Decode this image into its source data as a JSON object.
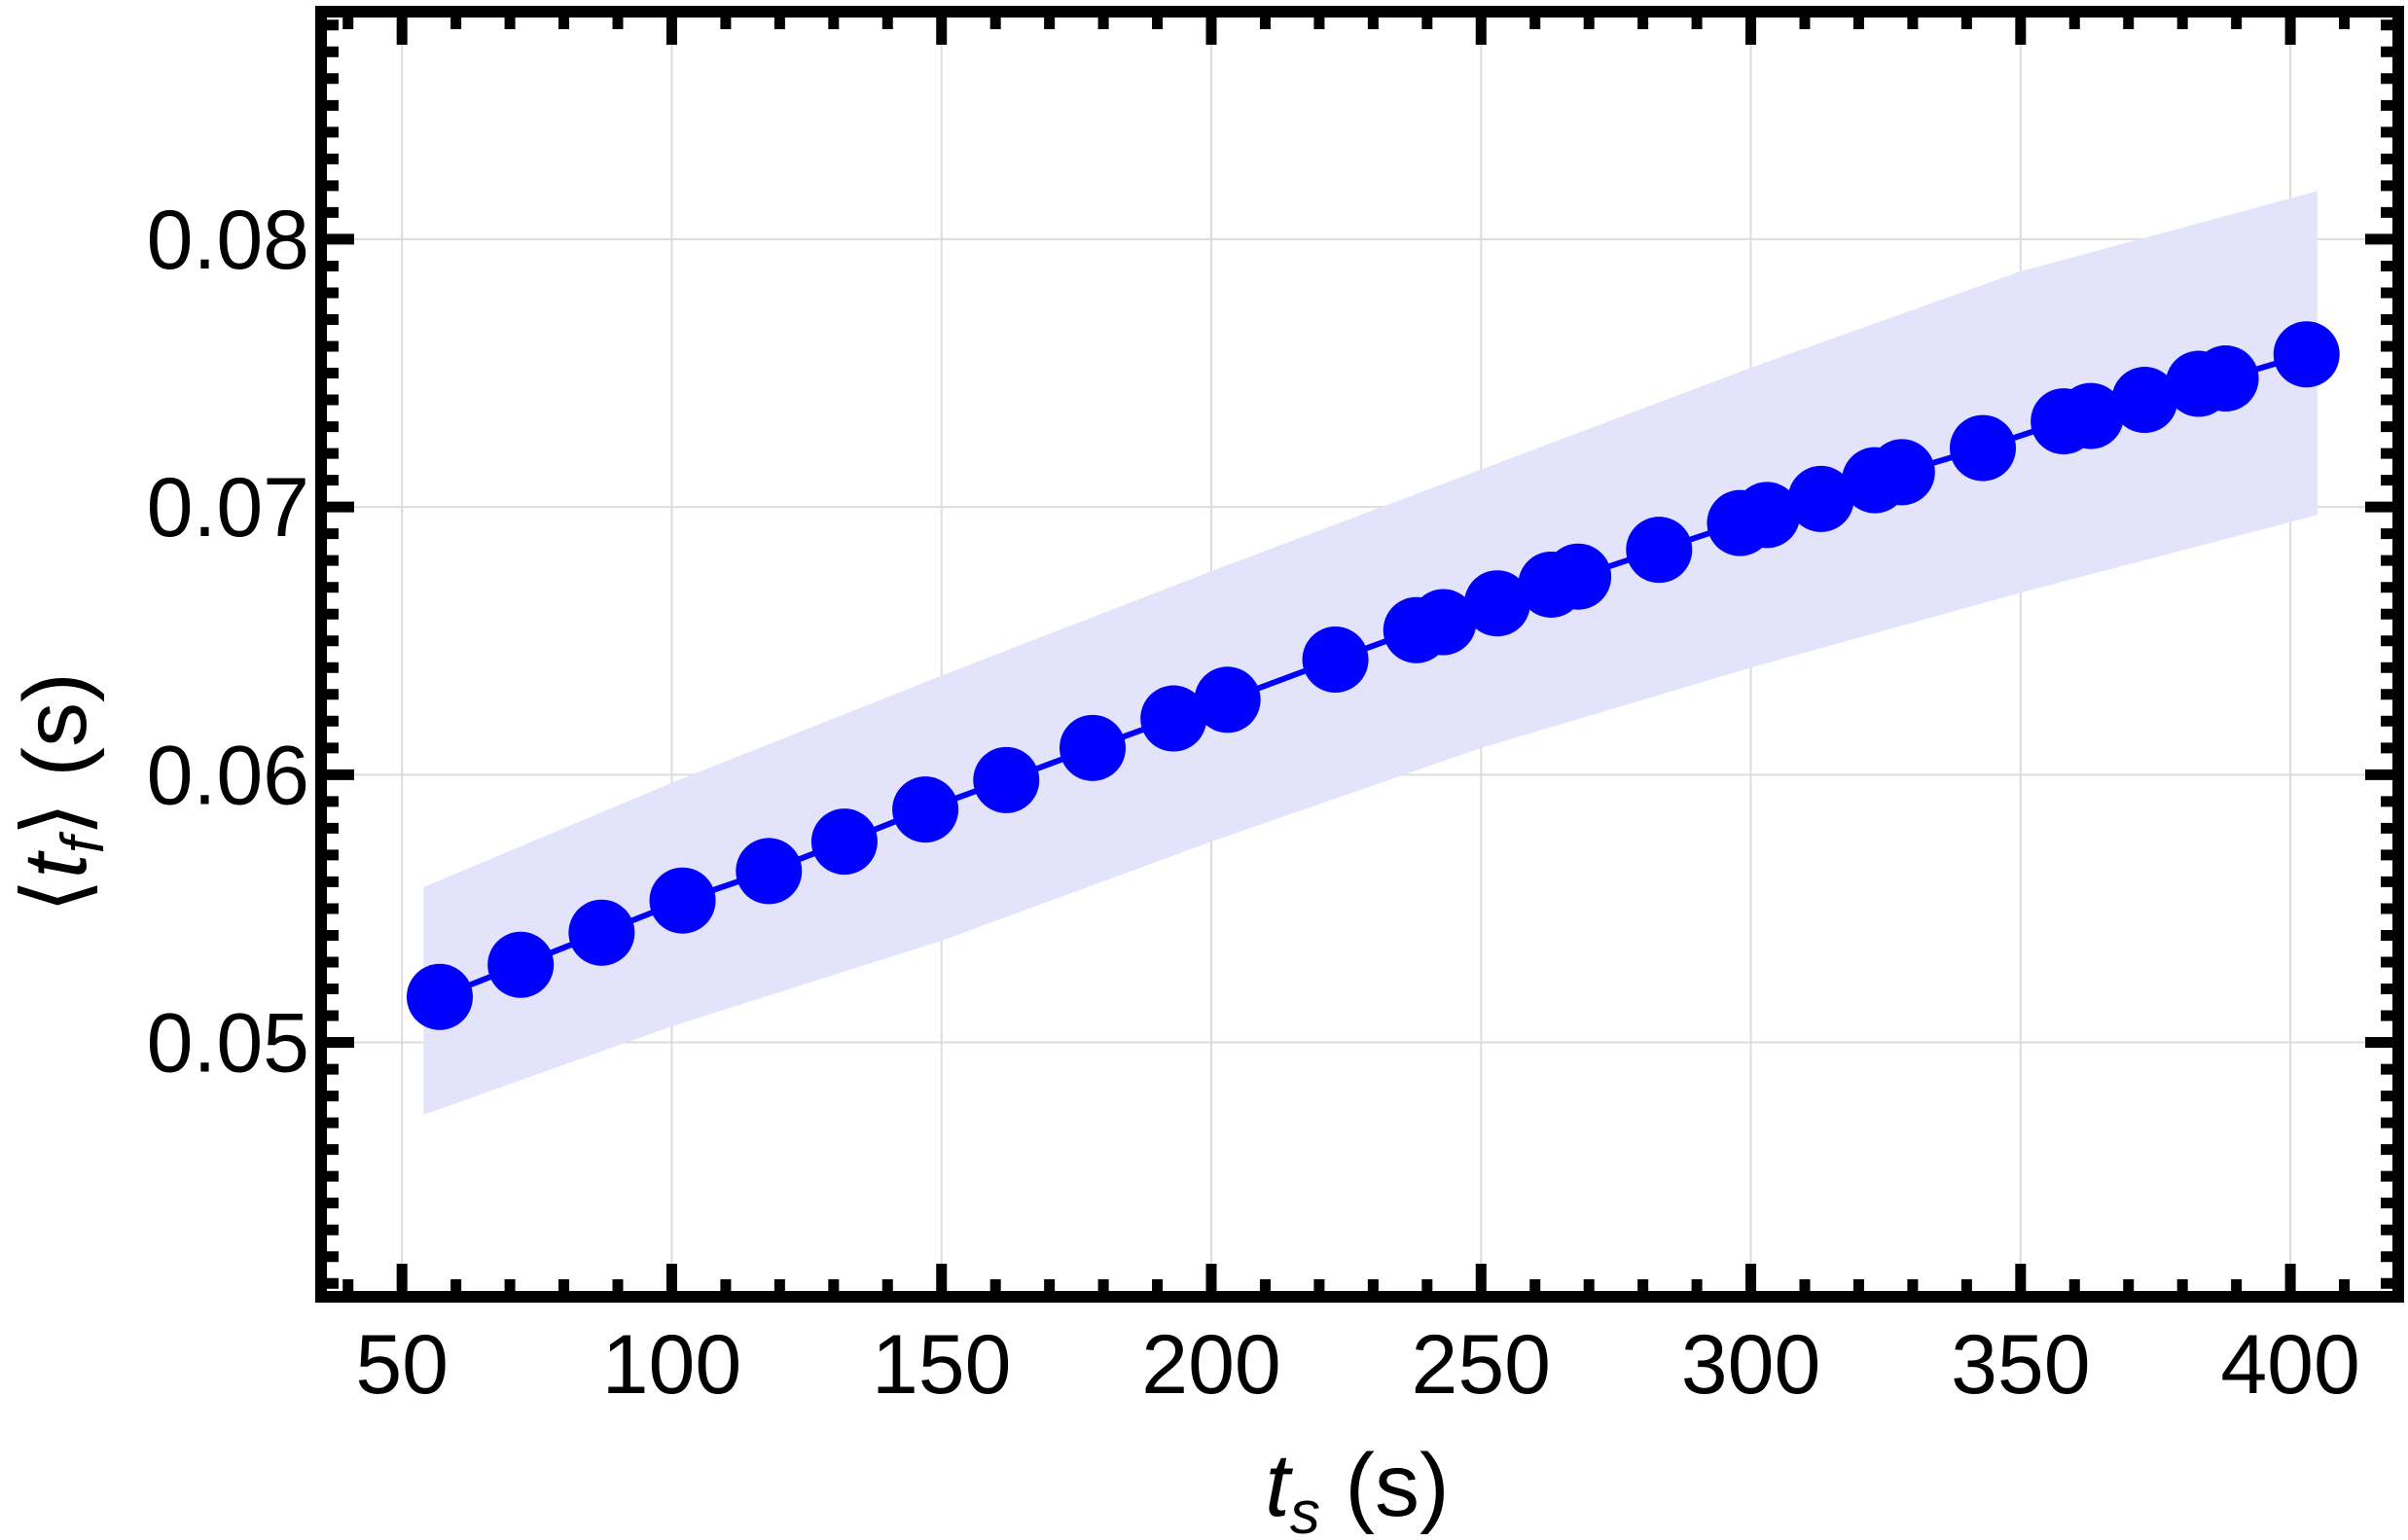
{
  "chart_data": {
    "type": "scatter",
    "xlabel": {
      "var": "t",
      "sub": "s",
      "unit": "(s)"
    },
    "ylabel": {
      "open": "⟨",
      "var": "t",
      "sub": "f",
      "close": "⟩",
      "unit": "(s)"
    },
    "xlim": [
      35,
      420
    ],
    "ylim": [
      0.0405,
      0.0885
    ],
    "x_ticks": [
      50,
      100,
      150,
      200,
      250,
      300,
      350,
      400
    ],
    "x_tick_labels": [
      "50",
      "100",
      "150",
      "200",
      "250",
      "300",
      "350",
      "400"
    ],
    "y_ticks": [
      0.05,
      0.06,
      0.07,
      0.08
    ],
    "y_tick_labels": [
      "0.05",
      "0.06",
      "0.07",
      "0.08"
    ],
    "grid": true,
    "series": [
      {
        "marker_color": "#0000ff",
        "line_color": "#0000ff",
        "band_color": "#e3e3fc",
        "x": [
          57,
          72,
          87,
          102,
          118,
          132,
          147,
          162,
          178,
          193,
          203,
          223,
          238,
          243,
          253,
          263,
          268,
          283,
          298,
          303,
          313,
          323,
          328,
          343,
          358,
          363,
          373,
          383,
          388,
          403
        ],
        "y": [
          0.0517,
          0.0529,
          0.0541,
          0.0553,
          0.0564,
          0.0575,
          0.0587,
          0.0598,
          0.061,
          0.0621,
          0.0628,
          0.0643,
          0.0654,
          0.0657,
          0.0664,
          0.0671,
          0.0674,
          0.0684,
          0.0694,
          0.0697,
          0.0703,
          0.071,
          0.0713,
          0.0722,
          0.0732,
          0.0734,
          0.074,
          0.0746,
          0.0748,
          0.0757
        ],
        "band_x": [
          54,
          100,
          150,
          200,
          250,
          300,
          350,
          405
        ],
        "band_upper": [
          0.0558,
          0.0597,
          0.0637,
          0.0676,
          0.0714,
          0.0752,
          0.0788,
          0.0818
        ],
        "band_lower": [
          0.0473,
          0.0506,
          0.0538,
          0.0575,
          0.061,
          0.064,
          0.0668,
          0.0697
        ]
      }
    ]
  }
}
